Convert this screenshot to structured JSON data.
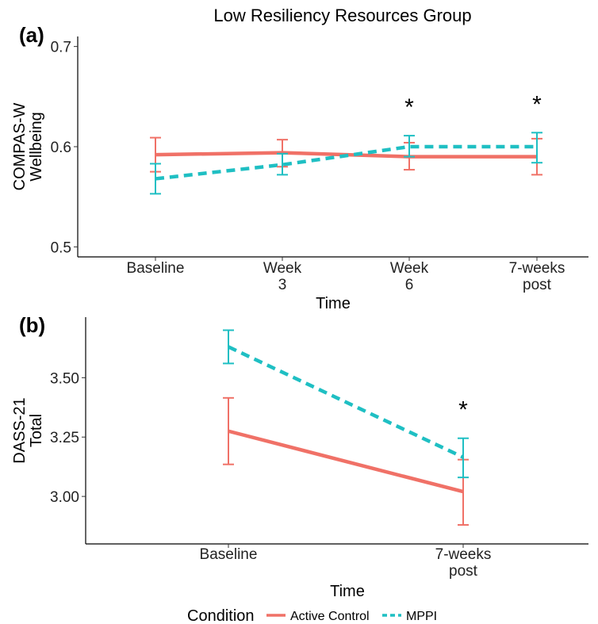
{
  "figure": {
    "title": "Low Resiliency Resources Group",
    "legend": {
      "title": "Condition",
      "position": "bottom"
    }
  },
  "colors": {
    "Active Control": "#F07167",
    "MPPI": "#1FBFC3"
  },
  "chart_data": [
    {
      "panel_label": "(a)",
      "type": "line",
      "categories": [
        "Baseline",
        "Week\n3",
        "Week\n6",
        "7-weeks\npost"
      ],
      "xlabel": "Time",
      "ylabel": "COMPAS-W\nWellbeing",
      "ylim": [
        0.49,
        0.71
      ],
      "yticks": [
        0.5,
        0.6,
        0.7
      ],
      "ytick_labels": [
        "0.5",
        "0.6",
        "0.7"
      ],
      "grid": false,
      "series": [
        {
          "name": "Active Control",
          "values": [
            0.592,
            0.594,
            0.59,
            0.59
          ],
          "lower": [
            0.575,
            0.58,
            0.577,
            0.572
          ],
          "upper": [
            0.609,
            0.607,
            0.604,
            0.608
          ],
          "dash": "solid"
        },
        {
          "name": "MPPI",
          "values": [
            0.568,
            0.582,
            0.6,
            0.6
          ],
          "lower": [
            0.553,
            0.572,
            0.59,
            0.584
          ],
          "upper": [
            0.583,
            0.593,
            0.611,
            0.614
          ],
          "dash": "dashed"
        }
      ],
      "annotations": [
        {
          "category": "Week\n6",
          "text": "*"
        },
        {
          "category": "7-weeks\npost",
          "text": "*"
        }
      ]
    },
    {
      "panel_label": "(b)",
      "type": "line",
      "categories": [
        "Baseline",
        "7-weeks\npost"
      ],
      "xlabel": "Time",
      "ylabel": "DASS-21\nTotal",
      "ylim": [
        2.8,
        3.755
      ],
      "yticks": [
        3.0,
        3.25,
        3.5
      ],
      "ytick_labels": [
        "3.00",
        "3.25",
        "3.50"
      ],
      "grid": false,
      "series": [
        {
          "name": "Active Control",
          "values": [
            3.275,
            3.02
          ],
          "lower": [
            3.135,
            2.88
          ],
          "upper": [
            3.415,
            3.155
          ],
          "dash": "solid"
        },
        {
          "name": "MPPI",
          "values": [
            3.63,
            3.165
          ],
          "lower": [
            3.56,
            3.08
          ],
          "upper": [
            3.7,
            3.245
          ],
          "dash": "dashed"
        }
      ],
      "annotations": [
        {
          "category": "7-weeks\npost",
          "text": "*"
        }
      ]
    }
  ]
}
